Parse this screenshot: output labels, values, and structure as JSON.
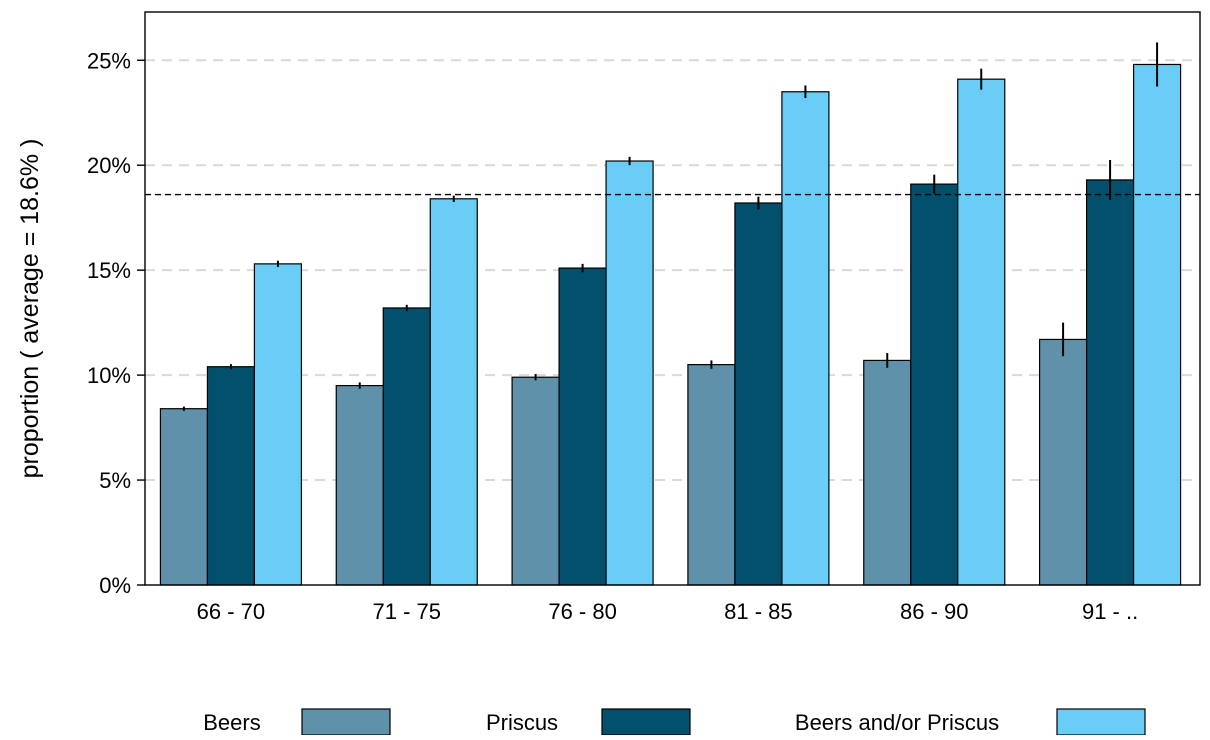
{
  "chart_data": {
    "type": "bar",
    "ylabel": "proportion  ( average = 18.6% )",
    "xlabel": "",
    "categories": [
      "66 - 70",
      "71 - 75",
      "76 - 80",
      "81 - 85",
      "86 - 90",
      "91 - .."
    ],
    "yticks": [
      0,
      5,
      10,
      15,
      20,
      25
    ],
    "ytick_labels": [
      "0%",
      "5%",
      "10%",
      "15%",
      "20%",
      "25%"
    ],
    "ylim": [
      0,
      27.3
    ],
    "unit": "%",
    "average": 18.6,
    "grid": "horizontal dashed",
    "legend_position": "bottom",
    "series": [
      {
        "name": "Beers",
        "color": "#5f91aa",
        "values": [
          8.4,
          9.5,
          9.9,
          10.5,
          10.7,
          11.7
        ],
        "err": [
          0.1,
          0.15,
          0.15,
          0.2,
          0.35,
          0.8
        ]
      },
      {
        "name": "Priscus",
        "color": "#02506b",
        "values": [
          10.4,
          13.2,
          15.1,
          18.2,
          19.1,
          19.3
        ],
        "err": [
          0.12,
          0.15,
          0.2,
          0.3,
          0.45,
          0.95
        ]
      },
      {
        "name": "Beers and/or Priscus",
        "color": "#69cdf5",
        "values": [
          15.3,
          18.4,
          20.2,
          23.5,
          24.1,
          24.8
        ],
        "err": [
          0.15,
          0.15,
          0.2,
          0.3,
          0.5,
          1.05
        ]
      }
    ]
  }
}
